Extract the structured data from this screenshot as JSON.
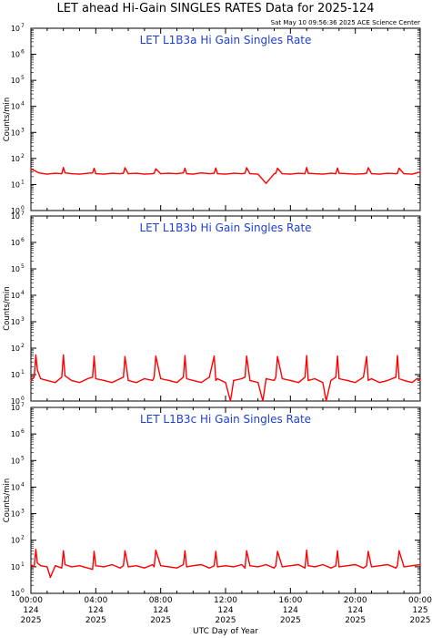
{
  "header": {
    "title": "LET ahead Hi-Gain SINGLES RATES Data for 2025-124",
    "timestamp": "Sat May 10 09:56:36 2025 ACE Science Center"
  },
  "x_axis": {
    "label": "UTC Day of Year",
    "ticks": [
      {
        "hour": 0,
        "lines": [
          "00:00",
          "124",
          "2025"
        ]
      },
      {
        "hour": 4,
        "lines": [
          "04:00",
          "124",
          "2025"
        ]
      },
      {
        "hour": 8,
        "lines": [
          "08:00",
          "124",
          "2025"
        ]
      },
      {
        "hour": 12,
        "lines": [
          "12:00",
          "124",
          "2025"
        ]
      },
      {
        "hour": 16,
        "lines": [
          "16:00",
          "124",
          "2025"
        ]
      },
      {
        "hour": 20,
        "lines": [
          "20:00",
          "124",
          "2025"
        ]
      },
      {
        "hour": 24,
        "lines": [
          "00:00",
          "125",
          "2025"
        ]
      }
    ]
  },
  "y_axis": {
    "label": "Counts/min",
    "tick_base": "10"
  },
  "colors": {
    "series": "#ff0000",
    "panel_title": "#1f3fd6"
  },
  "chart_data": [
    {
      "type": "line",
      "title": "LET L1B3a Hi Gain Singles Rate",
      "ylabel": "Counts/min",
      "xlabel": "UTC Day of Year",
      "xlim": [
        0,
        24
      ],
      "ylim": [
        1,
        10000000
      ],
      "yscale": "log",
      "y_tick_exponents": [
        0,
        1,
        2,
        3,
        4,
        5,
        6,
        7
      ],
      "series": [
        {
          "color": "#ff0000",
          "x": [
            0,
            0.5,
            1,
            1.5,
            1.9,
            2,
            2.1,
            2.5,
            3,
            3.5,
            3.8,
            3.9,
            4,
            4.5,
            5,
            5.5,
            5.7,
            5.8,
            6,
            6.5,
            7,
            7.5,
            7.6,
            7.7,
            8,
            8.5,
            9,
            9.4,
            9.5,
            9.6,
            10,
            10.5,
            11,
            11.3,
            11.4,
            11.5,
            12,
            12.5,
            13,
            13.2,
            13.3,
            13.5,
            14,
            14.5,
            15,
            15.1,
            15.2,
            15.5,
            16,
            16.5,
            16.9,
            17,
            17.1,
            17.5,
            18,
            18.5,
            18.8,
            18.9,
            19,
            19.5,
            20,
            20.5,
            20.7,
            20.8,
            21,
            21.5,
            22,
            22.5,
            22.6,
            22.7,
            23,
            23.5,
            24
          ],
          "y": [
            40,
            28,
            25,
            27,
            26,
            45,
            28,
            26,
            25,
            27,
            28,
            42,
            26,
            25,
            27,
            26,
            27,
            44,
            26,
            27,
            25,
            26,
            27,
            40,
            26,
            27,
            26,
            28,
            42,
            26,
            25,
            28,
            26,
            27,
            43,
            26,
            25,
            27,
            26,
            27,
            44,
            26,
            25,
            11,
            26,
            27,
            42,
            26,
            25,
            27,
            26,
            45,
            27,
            26,
            25,
            27,
            26,
            43,
            27,
            26,
            25,
            26,
            27,
            44,
            26,
            25,
            27,
            26,
            27,
            42,
            26,
            25,
            30
          ]
        }
      ]
    },
    {
      "type": "line",
      "title": "LET L1B3b Hi Gain Singles Rate",
      "ylabel": "Counts/min",
      "xlabel": "UTC Day of Year",
      "xlim": [
        0,
        24
      ],
      "ylim": [
        1,
        10000000
      ],
      "yscale": "log",
      "y_tick_exponents": [
        0,
        1,
        2,
        3,
        4,
        5,
        6,
        7
      ],
      "series": [
        {
          "color": "#ff0000",
          "x": [
            0,
            0.2,
            0.3,
            0.4,
            0.6,
            1,
            1.5,
            1.9,
            2,
            2.1,
            2.5,
            3,
            3.5,
            3.8,
            3.9,
            4,
            4.5,
            5,
            5.5,
            5.7,
            5.8,
            6,
            6.5,
            7,
            7.5,
            7.6,
            7.7,
            8,
            8.5,
            9,
            9.4,
            9.5,
            9.6,
            10,
            10.5,
            11,
            11.3,
            11.4,
            11.5,
            12,
            12.3,
            12.5,
            13,
            13.2,
            13.3,
            13.5,
            14,
            14.3,
            14.5,
            15,
            15.1,
            15.2,
            15.5,
            16,
            16.5,
            16.9,
            17,
            17.1,
            17.5,
            18,
            18.2,
            18.5,
            18.8,
            18.9,
            19,
            19.5,
            20,
            20.5,
            20.7,
            20.8,
            21,
            21.5,
            22,
            22.5,
            22.6,
            22.7,
            23,
            23.5,
            23.8,
            24
          ],
          "y": [
            6,
            8,
            55,
            15,
            7,
            6,
            5,
            8,
            55,
            9,
            6,
            5,
            7,
            8,
            50,
            7,
            6,
            5,
            7,
            8,
            48,
            6,
            5,
            7,
            6,
            8,
            50,
            7,
            6,
            5,
            8,
            52,
            7,
            6,
            5,
            8,
            50,
            6,
            7,
            5,
            1,
            6,
            7,
            8,
            50,
            6,
            5,
            1,
            7,
            6,
            8,
            48,
            7,
            6,
            5,
            8,
            52,
            6,
            7,
            5,
            1,
            6,
            8,
            50,
            7,
            6,
            5,
            8,
            48,
            6,
            7,
            5,
            6,
            8,
            52,
            7,
            6,
            5,
            7,
            6
          ]
        }
      ]
    },
    {
      "type": "line",
      "title": "LET L1B3c Hi Gain Singles Rate",
      "ylabel": "Counts/min",
      "xlabel": "UTC Day of Year",
      "xlim": [
        0,
        24
      ],
      "ylim": [
        1,
        10000000
      ],
      "yscale": "log",
      "y_tick_exponents": [
        0,
        1,
        2,
        3,
        4,
        5,
        6,
        7
      ],
      "series": [
        {
          "color": "#ff0000",
          "x": [
            0,
            0.2,
            0.3,
            0.4,
            0.6,
            1,
            1.2,
            1.5,
            1.9,
            2,
            2.1,
            2.5,
            3,
            3.5,
            3.8,
            3.9,
            4,
            4.5,
            5,
            5.5,
            5.7,
            5.8,
            6,
            6.5,
            7,
            7.5,
            7.6,
            7.7,
            8,
            8.5,
            9,
            9.4,
            9.5,
            9.6,
            10,
            10.5,
            11,
            11.3,
            11.4,
            11.5,
            12,
            12.5,
            13,
            13.2,
            13.3,
            13.5,
            14,
            14.5,
            15,
            15.1,
            15.2,
            15.5,
            16,
            16.5,
            16.9,
            17,
            17.1,
            17.5,
            18,
            18.5,
            18.8,
            18.9,
            19,
            19.5,
            20,
            20.5,
            20.7,
            20.8,
            21,
            21.5,
            22,
            22.5,
            22.6,
            22.7,
            23,
            23.5,
            24
          ],
          "y": [
            12,
            10,
            45,
            14,
            11,
            10,
            4,
            11,
            9,
            40,
            12,
            10,
            11,
            9,
            8,
            38,
            11,
            10,
            12,
            9,
            11,
            40,
            10,
            11,
            9,
            12,
            10,
            42,
            11,
            10,
            9,
            12,
            40,
            10,
            11,
            12,
            9,
            11,
            38,
            10,
            11,
            10,
            12,
            9,
            40,
            11,
            10,
            12,
            9,
            11,
            38,
            10,
            11,
            12,
            9,
            42,
            11,
            10,
            12,
            9,
            11,
            40,
            10,
            11,
            12,
            9,
            11,
            38,
            10,
            11,
            12,
            9,
            11,
            40,
            10,
            11,
            12
          ]
        }
      ]
    }
  ]
}
